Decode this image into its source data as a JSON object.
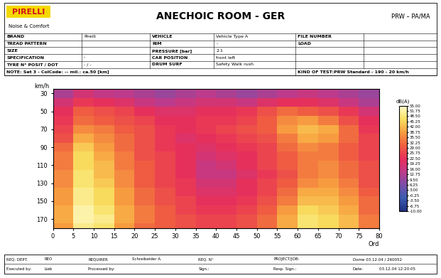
{
  "header": {
    "logo": "PIRELLI",
    "subtitle": "Noise & Comfort",
    "title": "ANECHOIC ROOM - GER",
    "code": "PRW – PA/MA"
  },
  "info_table": {
    "rows": [
      [
        "BRAND",
        "Pirelli",
        "VEHICLE",
        "Vehicle Type A",
        "FILE NUMBER",
        null
      ],
      [
        "TREAD PATTERN",
        null,
        "RIM",
        "-",
        "LOAD",
        null
      ],
      [
        "SIZE",
        null,
        "PRESSURE [bar]",
        "2.1",
        null,
        null
      ],
      [
        "SPECIFICATION",
        "-",
        "CAR POSITION",
        "front left",
        null,
        null
      ],
      [
        "TYRE N° POSIT / DOT",
        "- / -",
        "DRUM SURF",
        "Safety Walk rush",
        null,
        null
      ]
    ],
    "note": "NOTE: Set 3 - ColCode: -- mil.: ca.50 [km]",
    "kind_of_test": "KIND OF TEST:PRW Standard - 190 - 20 km/h"
  },
  "footer": {
    "rows": [
      [
        "REQ. DEPT.",
        "REO",
        "REQUIRER",
        "Schreibeider A.",
        "REQ. N°",
        null,
        "PROJECT/JOB:",
        "Dome 03.12.04 / 260052",
        null
      ],
      [
        "Executed by:",
        "Lieb",
        "Processed by:",
        null,
        "Sign.:",
        null,
        "Resp. Sign.:",
        "Date:",
        "03.12.04 12:20:05"
      ]
    ]
  },
  "chart_data": {
    "type": "heatmap",
    "xlabel": "Ord",
    "ylabel": "km/h",
    "x": [
      2.5,
      7.5,
      12.5,
      17.5,
      22.5,
      27.5,
      32.5,
      37.5,
      42.5,
      47.5,
      52.5,
      57.5,
      62.5,
      67.5,
      72.5,
      77.5
    ],
    "y": [
      30,
      40,
      50,
      60,
      70,
      80,
      90,
      100,
      110,
      120,
      130,
      140,
      150,
      160,
      170,
      180
    ],
    "cells": [
      [
        12,
        18,
        15,
        14,
        12,
        10,
        12,
        14,
        12,
        10,
        12,
        14,
        16,
        14,
        12,
        10
      ],
      [
        18,
        24,
        22,
        20,
        16,
        14,
        16,
        18,
        18,
        16,
        20,
        22,
        22,
        20,
        16,
        12
      ],
      [
        22,
        30,
        28,
        26,
        22,
        20,
        20,
        22,
        22,
        24,
        28,
        32,
        30,
        28,
        24,
        18
      ],
      [
        24,
        32,
        30,
        28,
        26,
        22,
        22,
        24,
        24,
        26,
        30,
        36,
        38,
        34,
        28,
        22
      ],
      [
        26,
        36,
        34,
        30,
        28,
        24,
        22,
        24,
        26,
        28,
        30,
        38,
        42,
        40,
        32,
        24
      ],
      [
        28,
        40,
        36,
        32,
        28,
        24,
        20,
        22,
        24,
        26,
        28,
        34,
        40,
        38,
        32,
        26
      ],
      [
        32,
        44,
        38,
        32,
        28,
        24,
        22,
        20,
        22,
        24,
        26,
        32,
        36,
        34,
        30,
        26
      ],
      [
        34,
        46,
        40,
        34,
        28,
        26,
        22,
        18,
        20,
        22,
        26,
        30,
        34,
        34,
        30,
        26
      ],
      [
        34,
        46,
        42,
        34,
        30,
        26,
        22,
        16,
        18,
        22,
        26,
        30,
        34,
        36,
        32,
        28
      ],
      [
        36,
        48,
        42,
        36,
        30,
        26,
        22,
        16,
        16,
        20,
        24,
        28,
        34,
        36,
        32,
        28
      ],
      [
        36,
        48,
        44,
        36,
        30,
        26,
        24,
        18,
        18,
        22,
        26,
        30,
        36,
        38,
        34,
        28
      ],
      [
        38,
        50,
        46,
        38,
        32,
        28,
        24,
        20,
        20,
        22,
        26,
        32,
        40,
        40,
        36,
        30
      ],
      [
        38,
        50,
        46,
        38,
        32,
        28,
        26,
        22,
        22,
        24,
        28,
        34,
        42,
        42,
        38,
        32
      ],
      [
        40,
        52,
        48,
        40,
        34,
        30,
        26,
        24,
        24,
        26,
        30,
        38,
        46,
        44,
        40,
        32
      ],
      [
        40,
        52,
        50,
        40,
        34,
        30,
        28,
        26,
        26,
        28,
        32,
        40,
        48,
        46,
        42,
        34
      ],
      [
        38,
        50,
        48,
        38,
        32,
        30,
        28,
        26,
        26,
        28,
        32,
        40,
        48,
        46,
        42,
        34
      ]
    ],
    "xlim": [
      0,
      80
    ],
    "xticks": [
      0,
      5,
      10,
      15,
      20,
      25,
      30,
      35,
      40,
      45,
      50,
      55,
      60,
      65,
      70,
      75,
      80
    ],
    "ylim": [
      180,
      25
    ],
    "yticks": [
      30,
      50,
      70,
      90,
      110,
      130,
      150,
      170
    ],
    "colorbar": {
      "label": "dB(A)",
      "range": [
        -10,
        55
      ],
      "ticks": [
        {
          "value": 55,
          "label": "55.00"
        },
        {
          "value": 51.75,
          "label": "51.75"
        },
        {
          "value": 48.5,
          "label": "48.50"
        },
        {
          "value": 45.25,
          "label": "45.25"
        },
        {
          "value": 42,
          "label": "42.00"
        },
        {
          "value": 38.75,
          "label": "38.75"
        },
        {
          "value": 35.5,
          "label": "35.50"
        },
        {
          "value": 32.25,
          "label": "32.25"
        },
        {
          "value": 29,
          "label": "29.00"
        },
        {
          "value": 25.75,
          "label": "25.75"
        },
        {
          "value": 22.5,
          "label": "22.50"
        },
        {
          "value": 19.25,
          "label": "19.25"
        },
        {
          "value": 16,
          "label": "16.00"
        },
        {
          "value": 12.75,
          "label": "12.75"
        },
        {
          "value": 9.5,
          "label": "9.50"
        },
        {
          "value": 6.25,
          "label": "6.25"
        },
        {
          "value": 3,
          "label": "3.00"
        },
        {
          "value": -0.25,
          "label": "-0.25"
        },
        {
          "value": -3.5,
          "label": "-3.50"
        },
        {
          "value": -6.75,
          "label": "-6.75"
        },
        {
          "value": -10,
          "label": "-10.00"
        }
      ]
    }
  }
}
